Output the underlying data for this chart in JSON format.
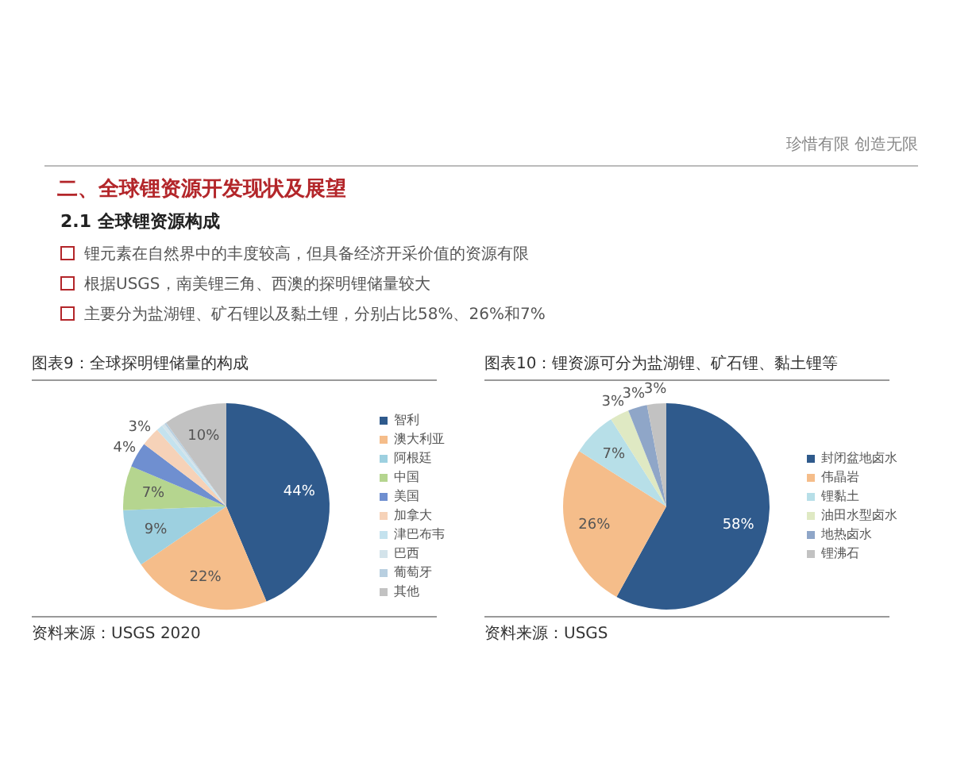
{
  "chart_data": [
    {
      "type": "other",
      "title": "二、全球锂资源开发现状及展望",
      "subtitle": "2.1 全球锂资源构成",
      "annotations": [
        "珍惜有限  创造无限",
        "锂元素在自然界中的丰度较高，但具备经济开采价值的资源有限",
        "根据USGS，南美锂三角、西澳的探明锂储量较大",
        "主要分为盐湖锂、矿石锂以及黏土锂，分别占比58%、26%和7%"
      ]
    },
    {
      "type": "pie",
      "title": "图表9：全球探明锂储量的构成",
      "categories": [
        "智利",
        "澳大利亚",
        "阿根廷",
        "中国",
        "美国",
        "加拿大",
        "津巴布韦",
        "巴西",
        "葡萄牙",
        "其他"
      ],
      "values": [
        44,
        22,
        9,
        7,
        4,
        3,
        1,
        0.5,
        0.3,
        10
      ],
      "value_labels": [
        "44%",
        "22%",
        "9%",
        "7%",
        "4%",
        "3%",
        null,
        null,
        null,
        "10%"
      ],
      "colors": [
        "#2f5a8c",
        "#f5bd8a",
        "#9dd0e0",
        "#b5d58f",
        "#6f8fd0",
        "#f6d2b8",
        "#c4e2ee",
        "#d3e3ea",
        "#b8cfe0",
        "#c2c2c2"
      ],
      "legend": "right",
      "annotations": [
        "资料来源：USGS 2020"
      ]
    },
    {
      "type": "pie",
      "title": "图表10：锂资源可分为盐湖锂、矿石锂、黏土锂等",
      "categories": [
        "封闭盆地卤水",
        "伟晶岩",
        "锂黏土",
        "油田水型卤水",
        "地热卤水",
        "锂沸石"
      ],
      "values": [
        58,
        26,
        7,
        3,
        3,
        3
      ],
      "value_labels": [
        "58%",
        "26%",
        "7%",
        "3%",
        "3%",
        "3%"
      ],
      "colors": [
        "#2f5a8c",
        "#f5bd8a",
        "#b7dfe8",
        "#dfe9c3",
        "#8fa6c8",
        "#c2c2c2"
      ],
      "legend": "right",
      "annotations": [
        "资料来源：USGS"
      ]
    }
  ]
}
